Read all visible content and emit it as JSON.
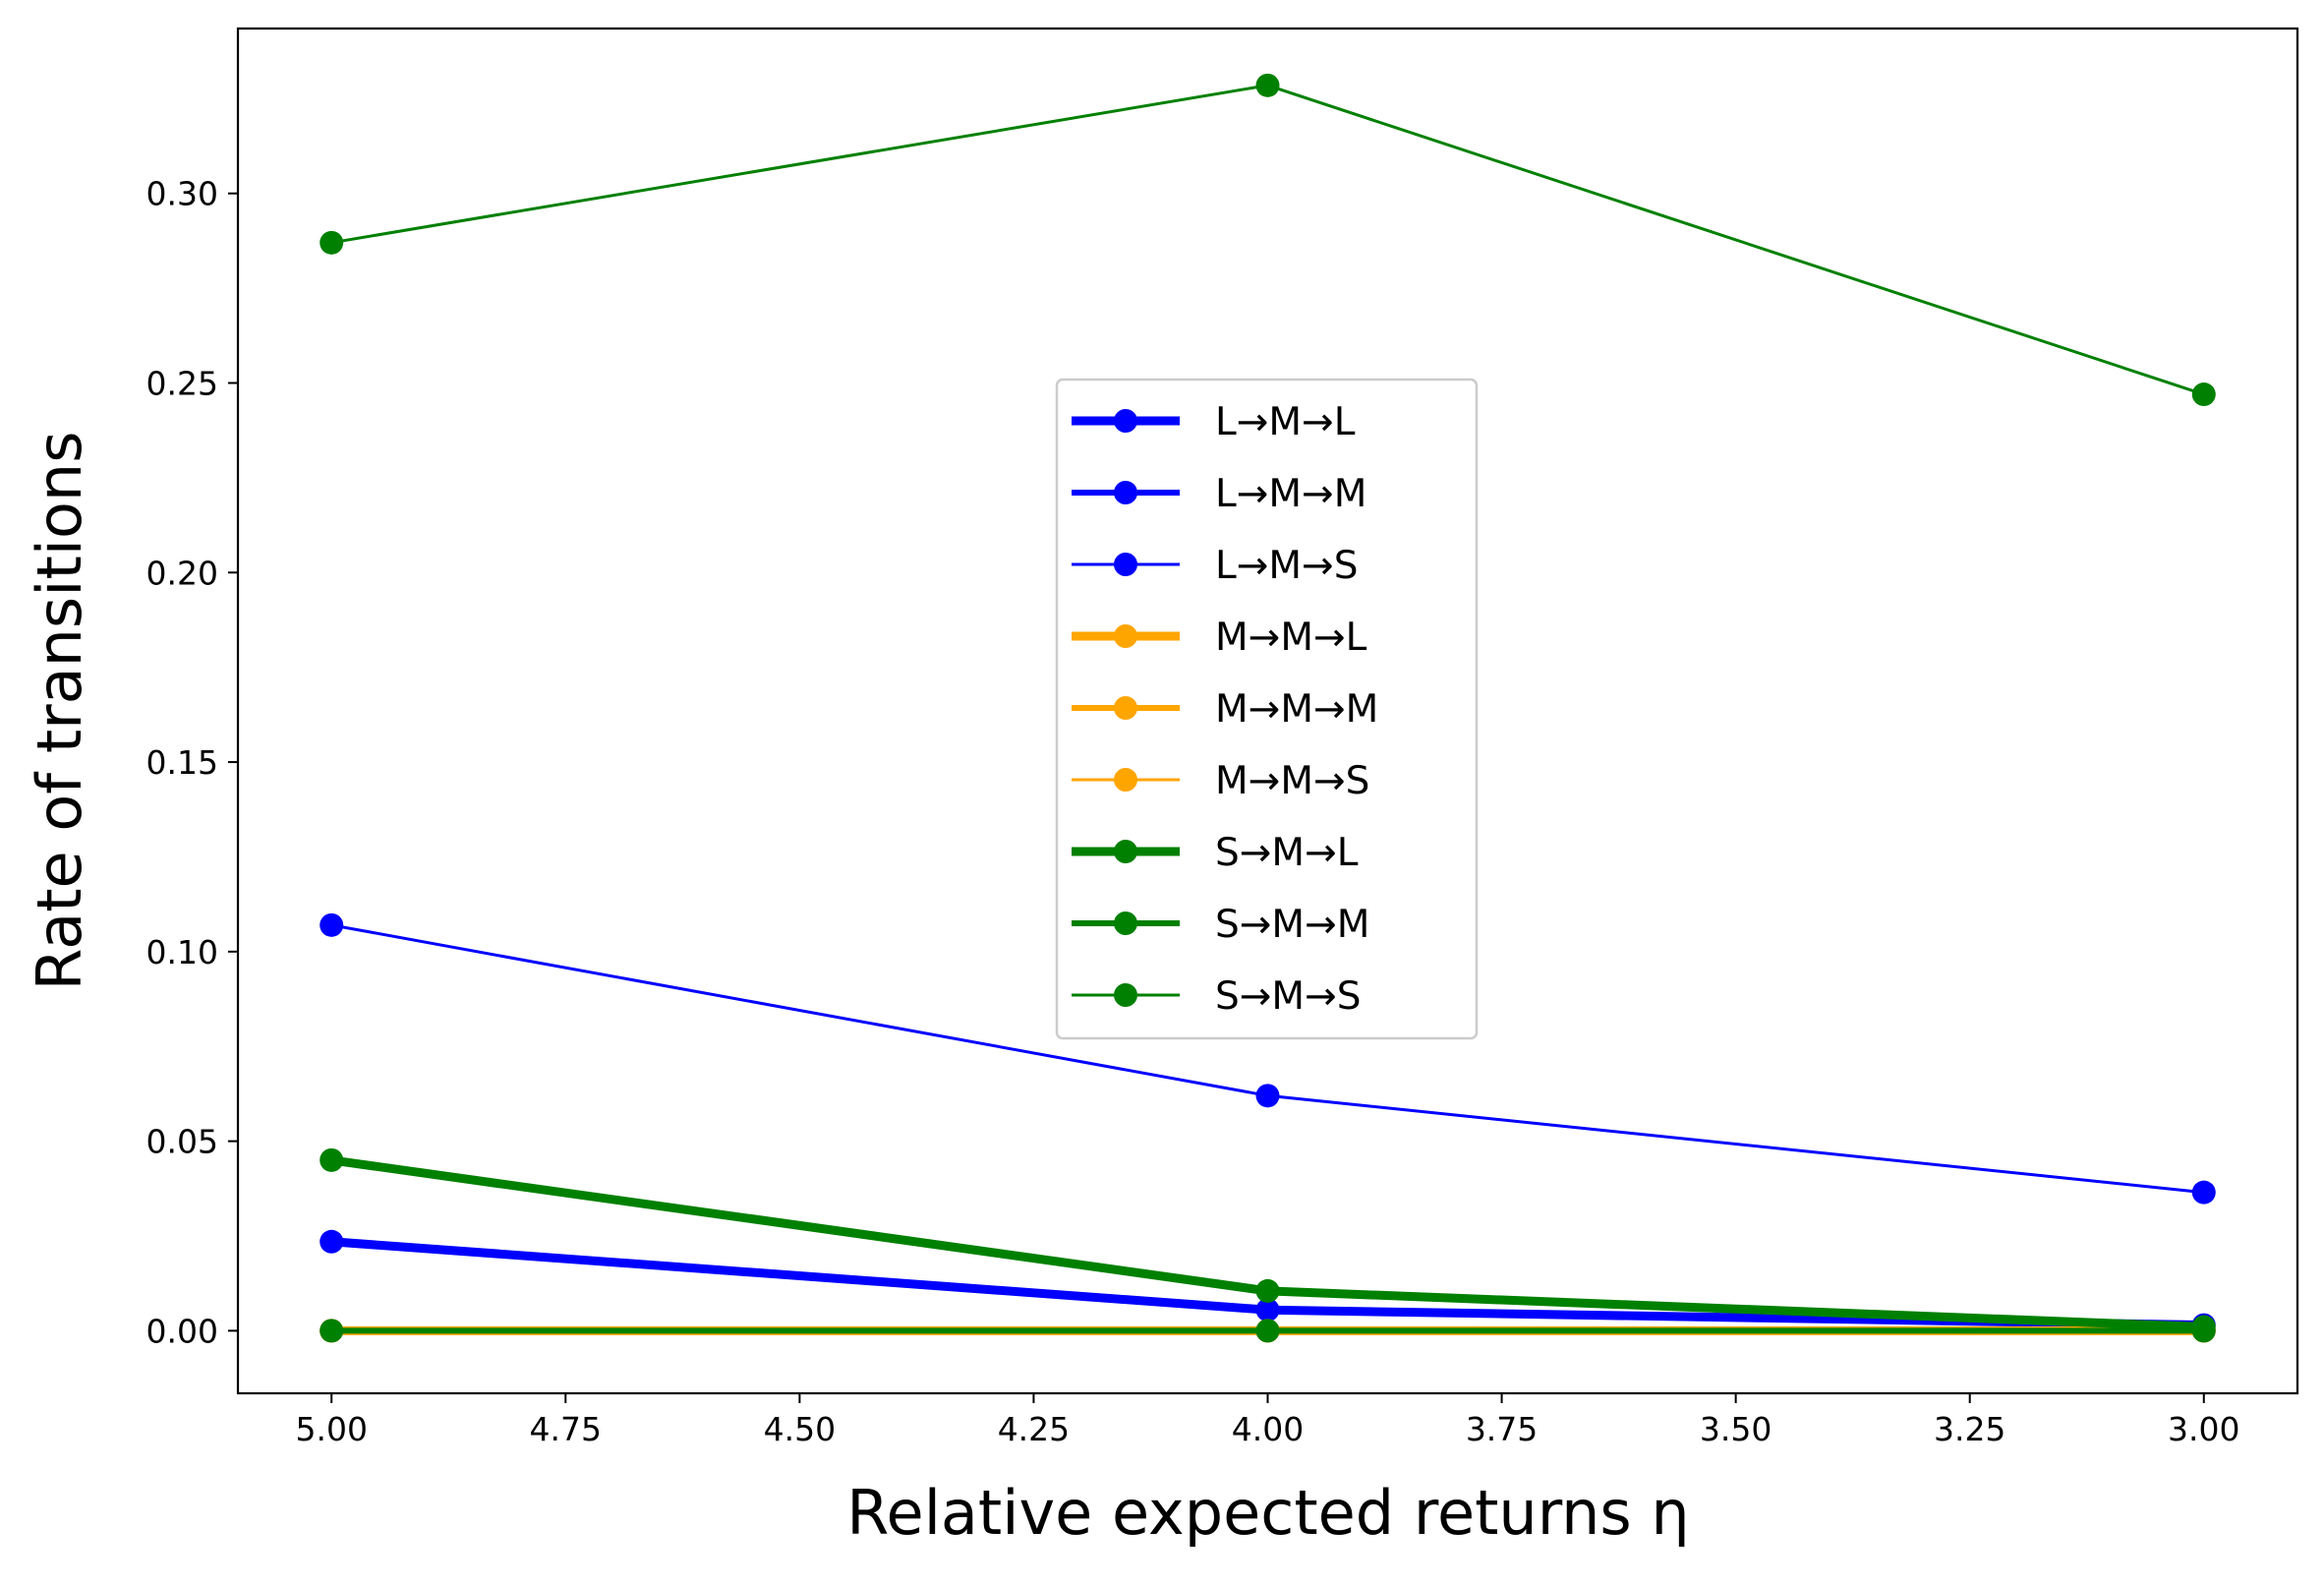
{
  "chart_data": {
    "type": "line",
    "xlabel": "Relative expected returns η",
    "ylabel": "Rate of transitions",
    "x": [
      5.0,
      4.0,
      3.0
    ],
    "xlim": [
      5.1,
      2.9
    ],
    "ylim": [
      -0.0165,
      0.3435
    ],
    "xticks": [
      "5.00",
      "4.75",
      "4.50",
      "4.25",
      "4.00",
      "3.75",
      "3.50",
      "3.25",
      "3.00"
    ],
    "xtick_values": [
      5.0,
      4.75,
      4.5,
      4.25,
      4.0,
      3.75,
      3.5,
      3.25,
      3.0
    ],
    "yticks": [
      "0.00",
      "0.05",
      "0.10",
      "0.15",
      "0.20",
      "0.25",
      "0.30"
    ],
    "ytick_values": [
      0.0,
      0.05,
      0.1,
      0.15,
      0.2,
      0.25,
      0.3
    ],
    "x_axis_inverted": true,
    "grid": false,
    "legend_position": "center",
    "series": [
      {
        "name": "L→M→L",
        "color": "#0000ff",
        "weight": "thick",
        "values": [
          0.0235,
          0.0055,
          0.0015
        ]
      },
      {
        "name": "L→M→M",
        "color": "#0000ff",
        "weight": "medium",
        "values": [
          0.0,
          0.0,
          0.0
        ]
      },
      {
        "name": "L→M→S",
        "color": "#0000ff",
        "weight": "thin",
        "values": [
          0.107,
          0.062,
          0.0365
        ]
      },
      {
        "name": "M→M→L",
        "color": "#ffa500",
        "weight": "thick",
        "values": [
          0.0,
          0.0,
          0.0
        ]
      },
      {
        "name": "M→M→M",
        "color": "#ffa500",
        "weight": "medium",
        "values": [
          0.0,
          0.0,
          0.0
        ]
      },
      {
        "name": "M→M→S",
        "color": "#ffa500",
        "weight": "thin",
        "values": [
          0.0,
          0.0,
          0.0
        ]
      },
      {
        "name": "S→M→L",
        "color": "#008000",
        "weight": "thick",
        "values": [
          0.045,
          0.0105,
          0.001
        ]
      },
      {
        "name": "S→M→M",
        "color": "#008000",
        "weight": "medium",
        "values": [
          0.0,
          0.0,
          0.0
        ]
      },
      {
        "name": "S→M→S",
        "color": "#008000",
        "weight": "thin",
        "values": [
          0.287,
          0.3285,
          0.247
        ]
      }
    ]
  }
}
